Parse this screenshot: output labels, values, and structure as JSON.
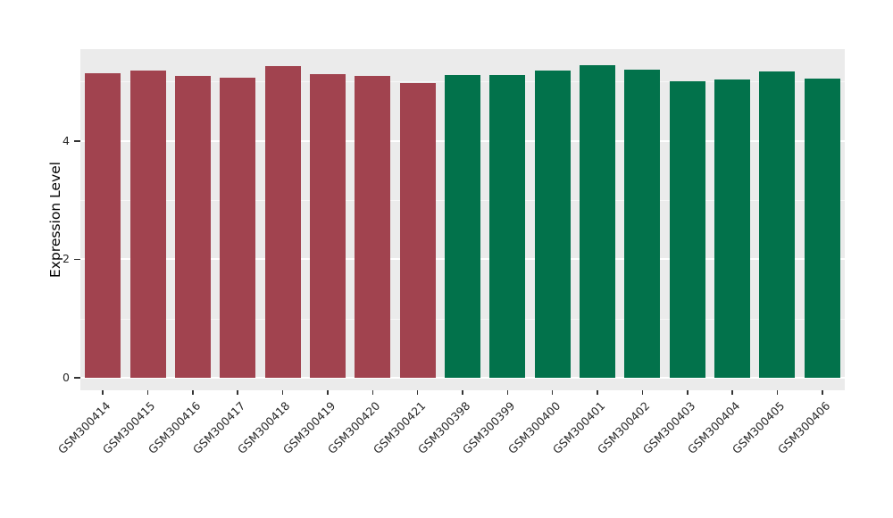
{
  "chart_data": {
    "type": "bar",
    "ylabel": "Expression Level",
    "ylim": [
      0,
      5.55
    ],
    "yticks_major": [
      0,
      2,
      4
    ],
    "yticks_minor": [
      1,
      3,
      5
    ],
    "panel_bg": "#EBEBEB",
    "grid_color": "#FFFFFF",
    "group_colors": {
      "group1": "#A1434F",
      "group2": "#02724B"
    },
    "bars": [
      {
        "label": "GSM300414",
        "value": 5.15,
        "group": "group1"
      },
      {
        "label": "GSM300415",
        "value": 5.19,
        "group": "group1"
      },
      {
        "label": "GSM300416",
        "value": 5.1,
        "group": "group1"
      },
      {
        "label": "GSM300417",
        "value": 5.07,
        "group": "group1"
      },
      {
        "label": "GSM300418",
        "value": 5.27,
        "group": "group1"
      },
      {
        "label": "GSM300419",
        "value": 5.13,
        "group": "group1"
      },
      {
        "label": "GSM300420",
        "value": 5.1,
        "group": "group1"
      },
      {
        "label": "GSM300421",
        "value": 4.98,
        "group": "group1"
      },
      {
        "label": "GSM300398",
        "value": 5.11,
        "group": "group2"
      },
      {
        "label": "GSM300399",
        "value": 5.12,
        "group": "group2"
      },
      {
        "label": "GSM300400",
        "value": 5.19,
        "group": "group2"
      },
      {
        "label": "GSM300401",
        "value": 5.28,
        "group": "group2"
      },
      {
        "label": "GSM300402",
        "value": 5.21,
        "group": "group2"
      },
      {
        "label": "GSM300403",
        "value": 5.01,
        "group": "group2"
      },
      {
        "label": "GSM300404",
        "value": 5.03,
        "group": "group2"
      },
      {
        "label": "GSM300405",
        "value": 5.18,
        "group": "group2"
      },
      {
        "label": "GSM300406",
        "value": 5.06,
        "group": "group2"
      }
    ]
  }
}
